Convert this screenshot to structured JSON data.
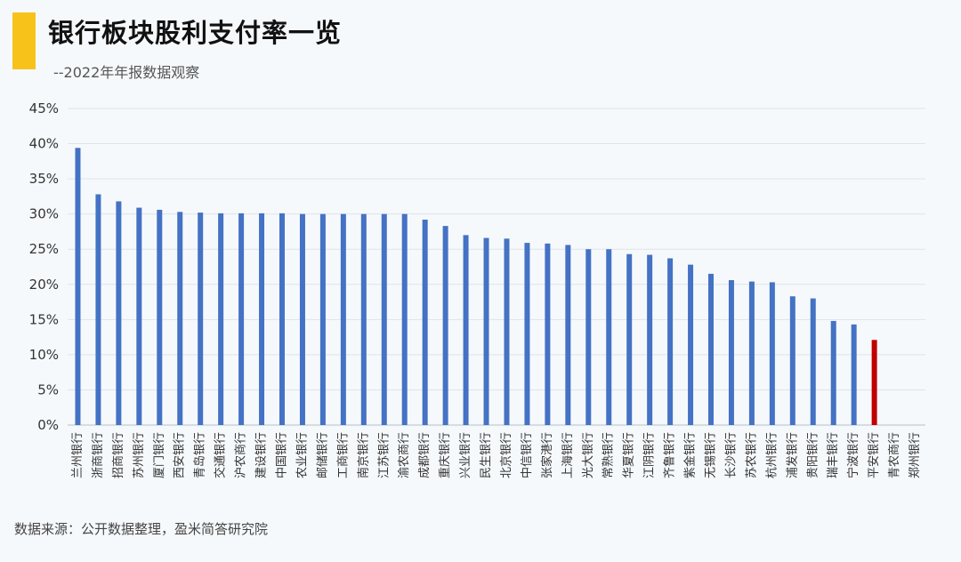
{
  "header": {
    "title": "银行板块股利支付率一览",
    "subtitle": "--2022年年报数据观察"
  },
  "footer": {
    "source": "数据来源：公开数据整理，盈米简答研究院"
  },
  "colors": {
    "accent": "#f7c31b",
    "bar": "#4472c4",
    "highlight": "#c00000",
    "grid": "#dfe3e8"
  },
  "chart_data": {
    "type": "bar",
    "title": "银行板块股利支付率一览",
    "xlabel": "",
    "ylabel": "",
    "ylim": [
      0,
      45
    ],
    "yticks": [
      0,
      5,
      10,
      15,
      20,
      25,
      30,
      35,
      40,
      45
    ],
    "ytick_labels": [
      "0%",
      "5%",
      "10%",
      "15%",
      "20%",
      "25%",
      "30%",
      "35%",
      "40%",
      "45%"
    ],
    "grid": true,
    "legend": "none",
    "highlight_category": "平安银行",
    "categories": [
      "兰州银行",
      "浙商银行",
      "招商银行",
      "苏州银行",
      "厦门银行",
      "西安银行",
      "青岛银行",
      "交通银行",
      "沪农商行",
      "建设银行",
      "中国银行",
      "农业银行",
      "邮储银行",
      "工商银行",
      "南京银行",
      "江苏银行",
      "渝农商行",
      "成都银行",
      "重庆银行",
      "兴业银行",
      "民生银行",
      "北京银行",
      "中信银行",
      "张家港行",
      "上海银行",
      "光大银行",
      "常熟银行",
      "华夏银行",
      "江阴银行",
      "齐鲁银行",
      "紫金银行",
      "无锡银行",
      "长沙银行",
      "苏农银行",
      "杭州银行",
      "浦发银行",
      "贵阳银行",
      "瑞丰银行",
      "宁波银行",
      "平安银行",
      "青农商行",
      "郑州银行"
    ],
    "values": [
      39.4,
      32.8,
      31.8,
      30.9,
      30.6,
      30.3,
      30.2,
      30.1,
      30.1,
      30.1,
      30.1,
      30.0,
      30.0,
      30.0,
      30.0,
      30.0,
      30.0,
      29.2,
      28.3,
      27.0,
      26.6,
      26.5,
      25.9,
      25.8,
      25.6,
      25.0,
      25.0,
      24.3,
      24.2,
      23.7,
      22.8,
      21.5,
      20.6,
      20.4,
      20.3,
      18.3,
      18.0,
      14.8,
      14.3,
      12.1,
      0,
      0
    ]
  }
}
